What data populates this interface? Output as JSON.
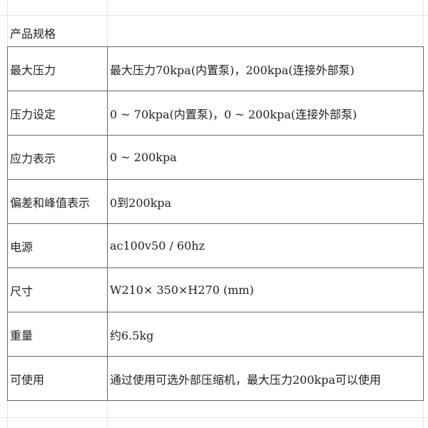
{
  "title": "产品规格",
  "rows": [
    {
      "label": "最大压力",
      "value": "最大压力70kpa(内置泵)，200kpa(连接外部泵)"
    },
    {
      "label": "压力设定",
      "value": "0 ~ 70kpa(内置泵)，0 ~ 200kpa(连接外部泵)"
    },
    {
      "label": "应力表示",
      "value": "0 ~ 200kpa"
    },
    {
      "label": "偏差和峰值表示",
      "value": "0到200kpa"
    },
    {
      "label": "电源",
      "value": "ac100v50 / 60hz"
    },
    {
      "label": "尺寸",
      "value": "W210× 350×H270 (mm)"
    },
    {
      "label": "重量",
      "value": "约6.5kg"
    },
    {
      "label": "可使用",
      "value": "通过使用可选外部压缩机，最大压力200kpa可以使用"
    }
  ]
}
